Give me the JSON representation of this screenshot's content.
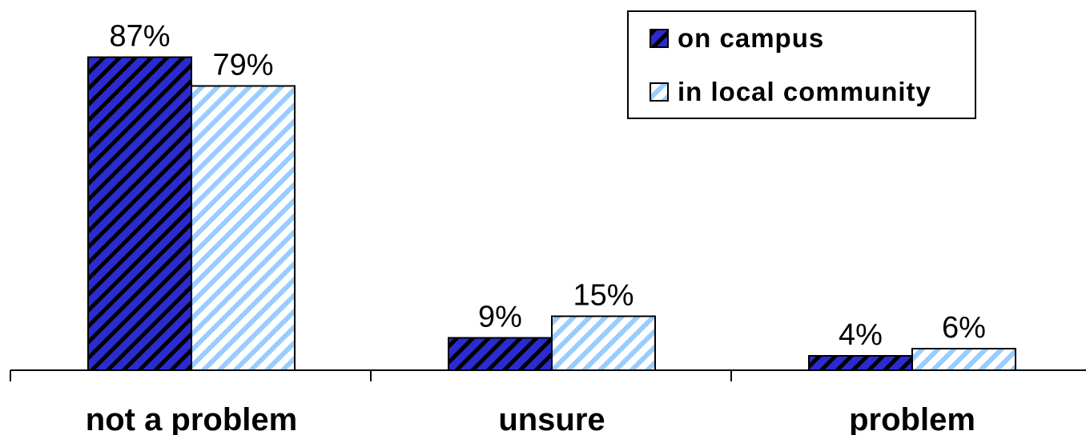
{
  "chart_data": {
    "type": "bar",
    "title": "",
    "xlabel": "",
    "ylabel": "",
    "ylim": [
      0,
      100
    ],
    "grid": false,
    "legend_position": "top-right",
    "categories": [
      "not a problem",
      "unsure",
      "problem"
    ],
    "series": [
      {
        "name": "on campus",
        "values": [
          87,
          9,
          4
        ],
        "labels": [
          "87%",
          "9%",
          "4%"
        ],
        "color": "#3333cc",
        "pattern": "dark diagonal hatch"
      },
      {
        "name": "in local community",
        "values": [
          79,
          15,
          6
        ],
        "labels": [
          "79%",
          "15%",
          "6%"
        ],
        "color": "#99ccff",
        "pattern": "light diagonal hatch"
      }
    ]
  }
}
